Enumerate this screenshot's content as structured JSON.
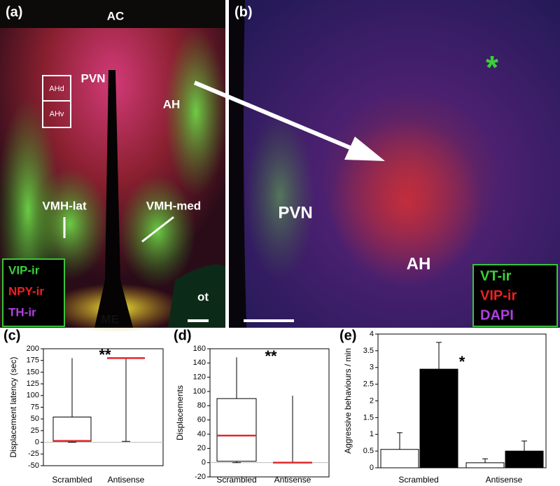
{
  "images": [
    {
      "panel": "(a)",
      "labels": [
        "AC",
        "PVN",
        "AHd",
        "AHv",
        "AH",
        "VMH-lat",
        "VMH-med",
        "ot",
        "ME"
      ],
      "legend": [
        "VIP-ir",
        "NPY-ir",
        "TH-ir"
      ]
    },
    {
      "panel": "(b)",
      "labels": [
        "*",
        "PVN",
        "AH"
      ],
      "legend": [
        "VT-ir",
        "VIP-ir",
        "DAPI"
      ]
    }
  ],
  "chart_data": [
    {
      "type": "box",
      "panel": "(c)",
      "ylabel": "Displacement latency (sec)",
      "categories": [
        "Scrambled",
        "Antisense"
      ],
      "boxes": [
        {
          "min": 0,
          "q1": 2,
          "median": 3,
          "q3": 54,
          "max": 180
        },
        {
          "min": 2,
          "q1": 180,
          "median": 180,
          "q3": 180,
          "max": 180
        }
      ],
      "ylim": [
        -50,
        200
      ],
      "yticks": [
        -50,
        -25,
        0,
        25,
        50,
        75,
        100,
        125,
        150,
        175,
        200
      ],
      "annotation": "**",
      "median_color": "#e0282c"
    },
    {
      "type": "box",
      "panel": "(d)",
      "ylabel": "Displacements",
      "categories": [
        "Scrambled",
        "Antisense"
      ],
      "boxes": [
        {
          "min": 0,
          "q1": 2,
          "median": 38,
          "q3": 90,
          "max": 148
        },
        {
          "min": 0,
          "q1": 0,
          "median": 0,
          "q3": 0,
          "max": 94
        }
      ],
      "ylim": [
        -20,
        160
      ],
      "yticks": [
        -20,
        0,
        20,
        40,
        60,
        80,
        100,
        120,
        140,
        160
      ],
      "annotation": "**",
      "median_color": "#e0282c"
    },
    {
      "type": "bar",
      "panel": "(e)",
      "ylabel": "Aggressive behaviours / min",
      "categories": [
        "Scrambled",
        "Antisense"
      ],
      "series": [
        {
          "color": "#ffffff",
          "values": [
            0.55,
            0.15
          ],
          "errors": [
            0.5,
            0.12
          ]
        },
        {
          "color": "#000000",
          "values": [
            2.95,
            0.5
          ],
          "errors": [
            0.8,
            0.3
          ]
        }
      ],
      "ylim": [
        0,
        4
      ],
      "yticks": [
        0,
        0.5,
        1,
        1.5,
        2,
        2.5,
        3,
        3.5,
        4
      ],
      "annotation": "*"
    }
  ]
}
